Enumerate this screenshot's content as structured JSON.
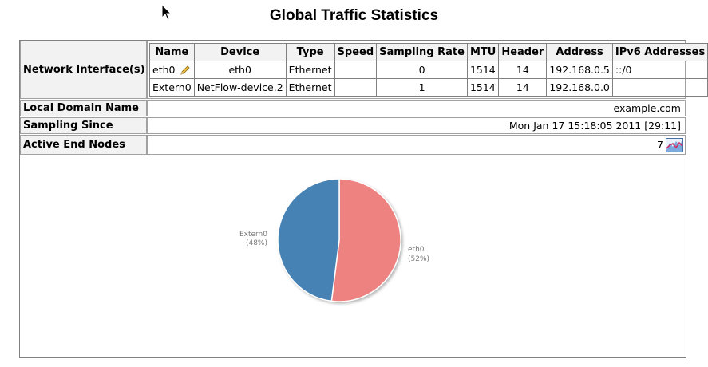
{
  "page": {
    "title": "Global Traffic Statistics"
  },
  "interfaces": {
    "row_label": "Network Interface(s)",
    "columns": [
      "Name",
      "Device",
      "Type",
      "Speed",
      "Sampling Rate",
      "MTU",
      "Header",
      "Address",
      "IPv6 Addresses"
    ],
    "rows": [
      {
        "name": "eth0",
        "device": "eth0",
        "type": "Ethernet",
        "speed": "",
        "sampling_rate": "0",
        "mtu": "1514",
        "header": "14",
        "address": "192.168.0.5",
        "ipv6": "::/0",
        "editable": true
      },
      {
        "name": "Extern0",
        "device": "NetFlow-device.2",
        "type": "Ethernet",
        "speed": "",
        "sampling_rate": "1",
        "mtu": "1514",
        "header": "14",
        "address": "192.168.0.0",
        "ipv6": "",
        "editable": false
      }
    ]
  },
  "local_domain": {
    "label": "Local Domain Name",
    "value": "example.com"
  },
  "sampling_since": {
    "label": "Sampling Since",
    "value": "Mon Jan 17 15:18:05 2011 [29:11]"
  },
  "active_end_nodes": {
    "label": "Active End Nodes",
    "value": "7",
    "icon": "traffic-chart-icon"
  },
  "chart_data": {
    "type": "pie",
    "categories": [
      "eth0",
      "Extern0"
    ],
    "values": [
      52,
      48
    ],
    "labels": [
      "eth0",
      "Extern0"
    ],
    "percent_labels": [
      "(52%)",
      "(48%)"
    ],
    "colors": [
      "#ee8280",
      "#4682b4"
    ]
  }
}
